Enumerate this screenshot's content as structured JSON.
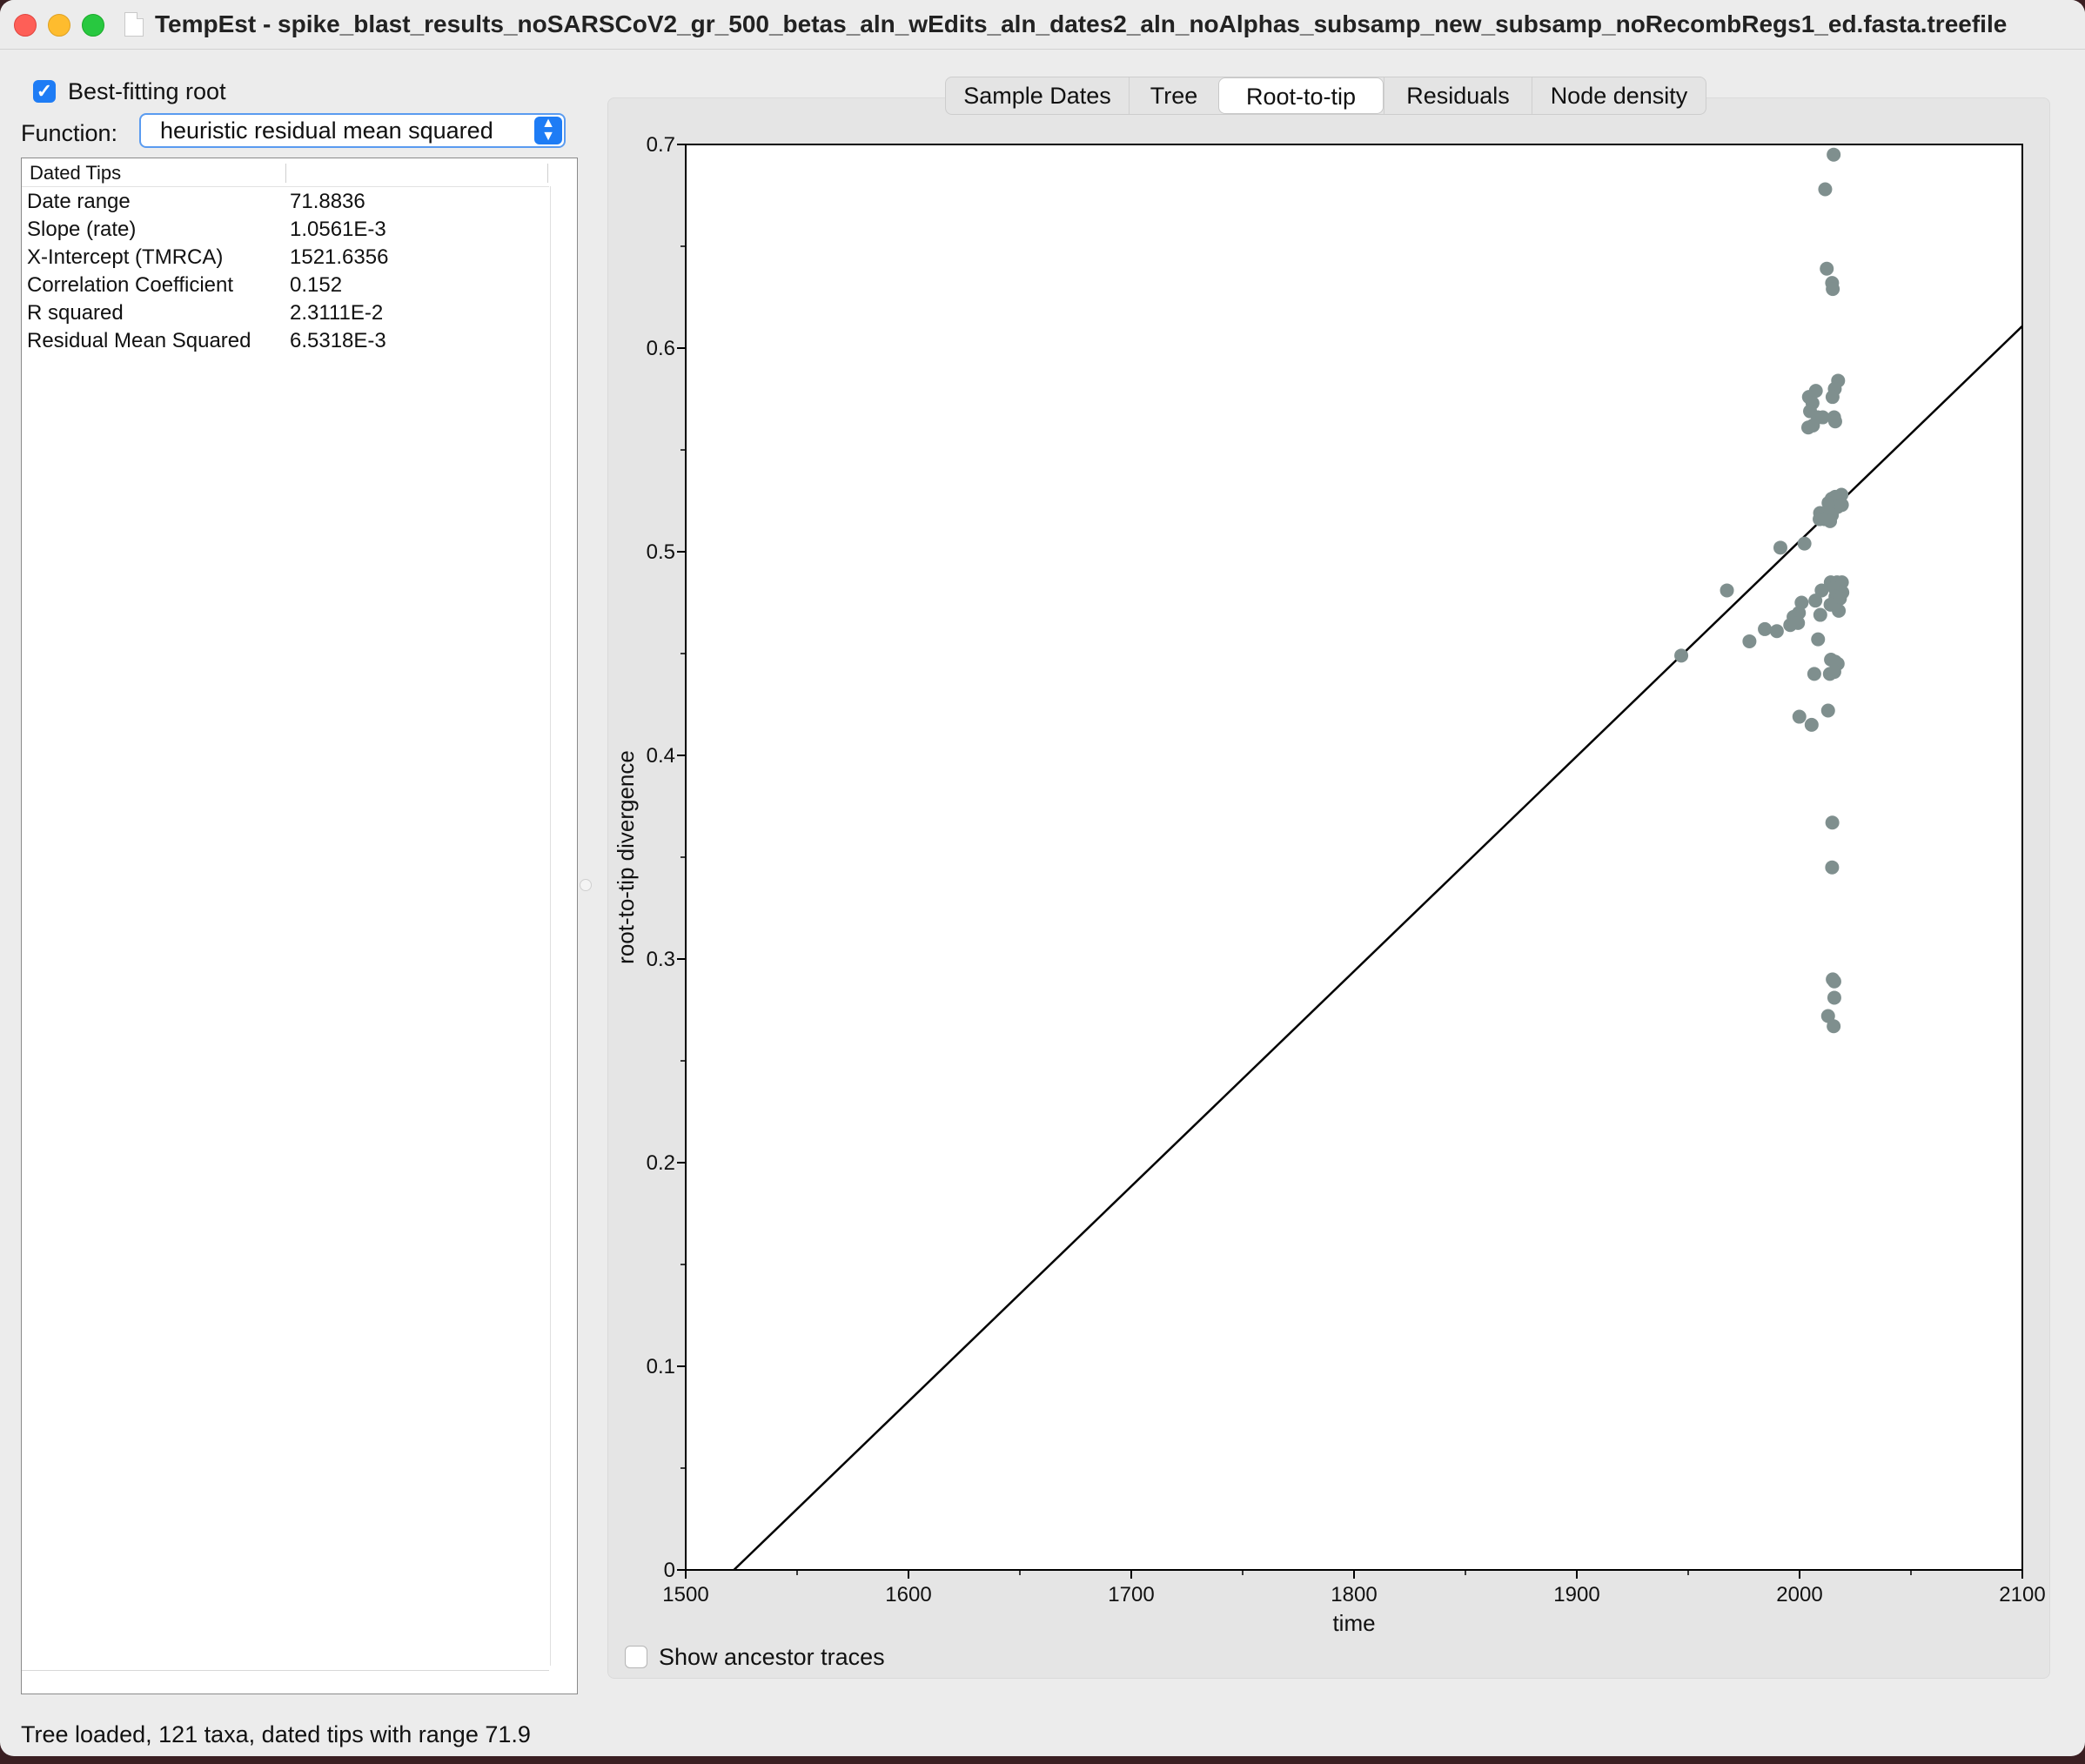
{
  "window": {
    "title": "TempEst - spike_blast_results_noSARSCoV2_gr_500_betas_aln_wEdits_aln_dates2_aln_noAlphas_subsamp_new_subsamp_noRecombRegs1_ed.fasta.treefile"
  },
  "controls": {
    "best_fitting_root_label": "Best-fitting root",
    "best_fitting_root_checked": true,
    "function_label": "Function:",
    "function_value": "heuristic residual mean squared"
  },
  "stats": {
    "header": "Dated Tips",
    "rows": [
      {
        "label": "Date range",
        "value": "71.8836"
      },
      {
        "label": "Slope (rate)",
        "value": "1.0561E-3"
      },
      {
        "label": "X-Intercept (TMRCA)",
        "value": "1521.6356"
      },
      {
        "label": "Correlation Coefficient",
        "value": "0.152"
      },
      {
        "label": "R squared",
        "value": "2.3111E-2"
      },
      {
        "label": "Residual Mean Squared",
        "value": "6.5318E-3"
      }
    ]
  },
  "tabs": [
    "Sample Dates",
    "Tree",
    "Root-to-tip",
    "Residuals",
    "Node density"
  ],
  "active_tab": "Root-to-tip",
  "show_ancestor_traces_label": "Show ancestor traces",
  "show_ancestor_traces_checked": false,
  "status": "Tree loaded, 121 taxa, dated tips with range 71.9",
  "colors": {
    "accent": "#1e7cf5",
    "point": "#7f8f8e",
    "line": "#000000"
  },
  "chart_data": {
    "type": "scatter",
    "xlabel": "time",
    "ylabel": "root-to-tip divergence",
    "xlim": [
      1500,
      2100
    ],
    "ylim": [
      0,
      0.7
    ],
    "xticks": [
      "1500",
      "1600",
      "1700",
      "1800",
      "1900",
      "2000",
      "2100"
    ],
    "yticks": [
      "0",
      "0.1",
      "0.2",
      "0.3",
      "0.4",
      "0.5",
      "0.6",
      "0.7"
    ],
    "grid": false,
    "regression_line": {
      "slope": 0.0010561,
      "x_intercept": 1521.6356
    },
    "points": [
      [
        2015.3,
        0.695
      ],
      [
        2011.5,
        0.678
      ],
      [
        2012.2,
        0.639
      ],
      [
        2014.6,
        0.632
      ],
      [
        2014.9,
        0.629
      ],
      [
        2017.3,
        0.584
      ],
      [
        2015.8,
        0.58
      ],
      [
        2014.8,
        0.576
      ],
      [
        2007.3,
        0.579
      ],
      [
        2004.2,
        0.576
      ],
      [
        2005.8,
        0.573
      ],
      [
        2004.7,
        0.569
      ],
      [
        2008.2,
        0.566
      ],
      [
        2010.4,
        0.566
      ],
      [
        2015.5,
        0.566
      ],
      [
        2016.0,
        0.564
      ],
      [
        2003.9,
        0.561
      ],
      [
        2006.0,
        0.562
      ],
      [
        2018.8,
        0.528
      ],
      [
        2014.4,
        0.526
      ],
      [
        2016.0,
        0.527
      ],
      [
        2013.0,
        0.524
      ],
      [
        2017.1,
        0.522
      ],
      [
        2019.0,
        0.523
      ],
      [
        2009.2,
        0.519
      ],
      [
        2012.8,
        0.519
      ],
      [
        2014.5,
        0.518
      ],
      [
        2009.0,
        0.516
      ],
      [
        2011.3,
        0.516
      ],
      [
        2013.7,
        0.515
      ],
      [
        2002.2,
        0.504
      ],
      [
        1991.4,
        0.502
      ],
      [
        1967.4,
        0.481
      ],
      [
        1946.9,
        0.449
      ],
      [
        2014.0,
        0.485
      ],
      [
        2016.8,
        0.485
      ],
      [
        2019.0,
        0.485
      ],
      [
        2009.9,
        0.481
      ],
      [
        2015.8,
        0.482
      ],
      [
        2019.2,
        0.48
      ],
      [
        2016.1,
        0.478
      ],
      [
        2018.1,
        0.477
      ],
      [
        2007.1,
        0.476
      ],
      [
        2000.9,
        0.475
      ],
      [
        2013.9,
        0.474
      ],
      [
        2017.6,
        0.471
      ],
      [
        1999.7,
        0.47
      ],
      [
        2009.3,
        0.469
      ],
      [
        1997.3,
        0.468
      ],
      [
        1999.3,
        0.465
      ],
      [
        1995.8,
        0.464
      ],
      [
        1984.4,
        0.462
      ],
      [
        1989.8,
        0.461
      ],
      [
        1977.5,
        0.456
      ],
      [
        2008.3,
        0.457
      ],
      [
        2014.1,
        0.447
      ],
      [
        2016.0,
        0.446
      ],
      [
        2017.1,
        0.445
      ],
      [
        2006.6,
        0.44
      ],
      [
        2013.6,
        0.44
      ],
      [
        2015.6,
        0.441
      ],
      [
        2012.8,
        0.422
      ],
      [
        1999.9,
        0.419
      ],
      [
        2005.4,
        0.415
      ],
      [
        2014.7,
        0.367
      ],
      [
        2014.6,
        0.345
      ],
      [
        2014.9,
        0.29
      ],
      [
        2015.6,
        0.289
      ],
      [
        2015.6,
        0.281
      ],
      [
        2012.8,
        0.272
      ],
      [
        2015.3,
        0.267
      ]
    ]
  }
}
